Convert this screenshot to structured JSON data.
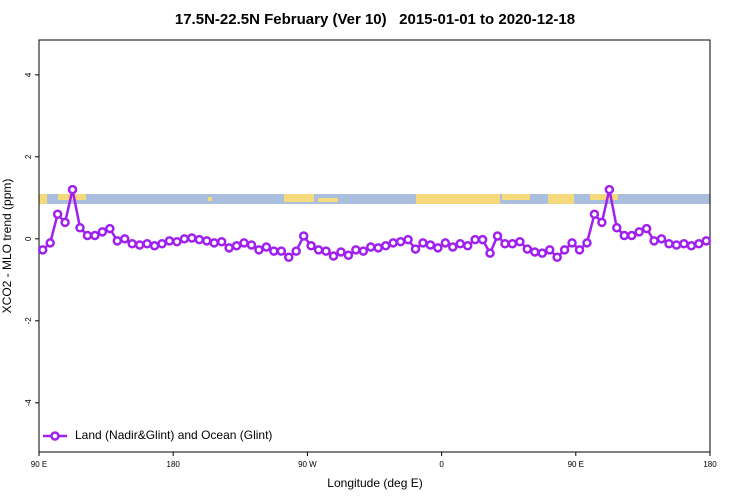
{
  "chart_data": {
    "type": "line",
    "title": "17.5N-22.5N February (Ver 10)   2015-01-01 to 2020-12-18",
    "xlabel": "Longitude (deg E)",
    "ylabel": "XCO2 - MLO trend (ppm)",
    "x": [
      92.5,
      97.5,
      102.5,
      107.5,
      112.5,
      117.5,
      122.5,
      127.5,
      132.5,
      137.5,
      142.5,
      147.5,
      152.5,
      157.5,
      162.5,
      167.5,
      172.5,
      177.5,
      182.5,
      187.5,
      192.5,
      197.5,
      202.5,
      207.5,
      212.5,
      217.5,
      222.5,
      227.5,
      232.5,
      237.5,
      242.5,
      247.5,
      252.5,
      257.5,
      262.5,
      267.5,
      272.5,
      277.5,
      282.5,
      287.5,
      292.5,
      297.5,
      302.5,
      307.5,
      312.5,
      317.5,
      322.5,
      327.5,
      332.5,
      337.5,
      342.5,
      347.5,
      352.5,
      357.5,
      362.5,
      367.5,
      372.5,
      377.5,
      382.5,
      387.5,
      392.5,
      397.5,
      402.5,
      407.5,
      412.5,
      417.5,
      422.5,
      427.5,
      432.5,
      437.5,
      442.5,
      447.5,
      452.5,
      457.5,
      462.5,
      467.5,
      472.5,
      477.5,
      482.5,
      487.5,
      492.5,
      497.5,
      502.5,
      507.5,
      512.5,
      517.5,
      522.5,
      527.5,
      532.5,
      537.5
    ],
    "series": [
      {
        "name": "Land (Nadir&Glint) and Ocean (Glint)",
        "color": "#a020f0",
        "values": [
          -0.27,
          -0.1,
          0.6,
          0.4,
          1.2,
          0.27,
          0.08,
          0.08,
          0.17,
          0.25,
          -0.05,
          0.0,
          -0.12,
          -0.15,
          -0.12,
          -0.17,
          -0.12,
          -0.05,
          -0.07,
          0.0,
          0.02,
          -0.02,
          -0.05,
          -0.1,
          -0.07,
          -0.22,
          -0.17,
          -0.1,
          -0.15,
          -0.27,
          -0.2,
          -0.3,
          -0.3,
          -0.45,
          -0.3,
          0.07,
          -0.17,
          -0.27,
          -0.3,
          -0.42,
          -0.32,
          -0.4,
          -0.27,
          -0.3,
          -0.2,
          -0.22,
          -0.17,
          -0.1,
          -0.07,
          -0.02,
          -0.25,
          -0.1,
          -0.15,
          -0.22,
          -0.1,
          -0.2,
          -0.12,
          -0.17,
          -0.02,
          -0.02,
          -0.35,
          0.07,
          -0.12,
          -0.12,
          -0.07,
          -0.25,
          -0.32,
          -0.35,
          -0.27,
          -0.45,
          -0.27,
          -0.1,
          -0.27,
          -0.1,
          0.6,
          0.4,
          1.2,
          0.27,
          0.08,
          0.08,
          0.17,
          0.25,
          -0.05,
          0.0,
          -0.12,
          -0.15,
          -0.12,
          -0.17,
          -0.12,
          -0.05
        ]
      }
    ],
    "xlim": [
      90,
      540
    ],
    "ylim": [
      -5.2,
      4.85
    ],
    "xticks": [
      {
        "value": 90,
        "label": "90 E"
      },
      180,
      {
        "value": 270,
        "label": "90 W"
      },
      {
        "value": 360,
        "label": "0"
      },
      {
        "value": 450,
        "label": "90 E"
      },
      {
        "value": 540,
        "label": "180"
      }
    ],
    "yticks": [
      -4,
      -2,
      0,
      2,
      4
    ],
    "legend": "bottomleft"
  }
}
